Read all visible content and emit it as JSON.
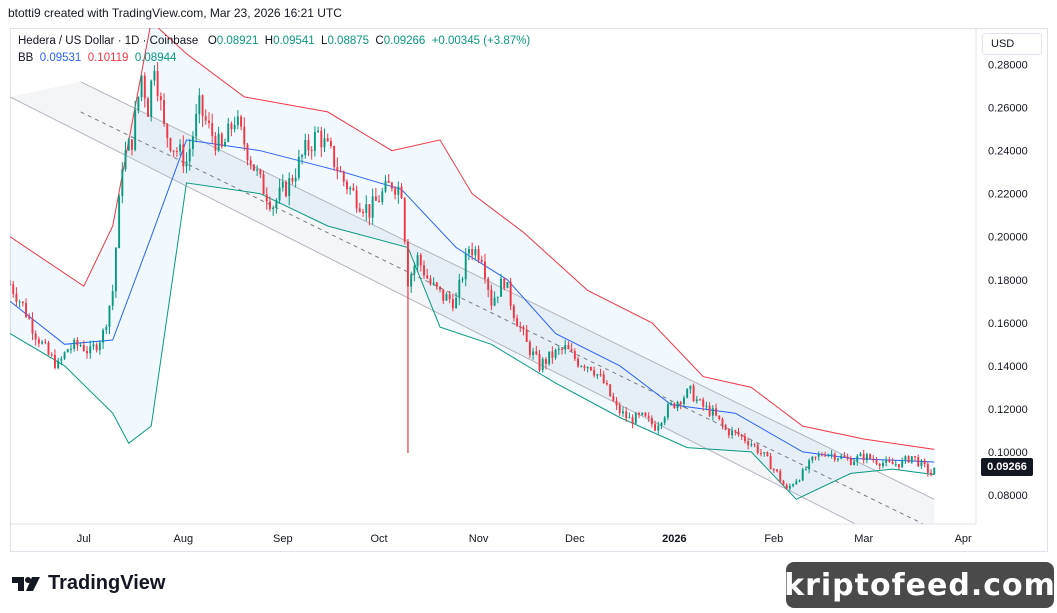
{
  "attribution": "btotti9 created with TradingView.com, Mar 23, 2026 16:21 UTC",
  "legend": {
    "symbol": "Hedera / US Dollar · 1D · Coinbase",
    "o_label": "O",
    "o_value": "0.08921",
    "h_label": "H",
    "h_value": "0.09541",
    "l_label": "L",
    "l_value": "0.08875",
    "c_label": "C",
    "c_value": "0.09266",
    "change": "+0.00345 (+3.87%)",
    "bb_label": "BB",
    "bb_basis": "0.09531",
    "bb_upper": "0.10119",
    "bb_lower": "0.08944"
  },
  "currency": "USD",
  "last_price": "0.09266",
  "brand": "TradingView",
  "watermark": "kriptofeed.com",
  "colors": {
    "up": "#089981",
    "down": "#f23645",
    "basis": "#2962ff",
    "upper": "#f23645",
    "lower": "#089981",
    "grid": "#e0e3eb",
    "channel": "#b2b5be"
  },
  "chart_data": {
    "type": "candlestick",
    "symbol": "Hedera / US Dollar",
    "interval": "1D",
    "exchange": "Coinbase",
    "ylim": [
      0.0665,
      0.297
    ],
    "yticks": [
      0.08,
      0.1,
      0.12,
      0.14,
      0.16,
      0.18,
      0.2,
      0.22,
      0.24,
      0.26,
      0.28
    ],
    "ytick_labels": [
      "0.08000",
      "0.10000",
      "0.12000",
      "0.14000",
      "0.16000",
      "0.18000",
      "0.20000",
      "0.22000",
      "0.24000",
      "0.26000",
      "0.28000"
    ],
    "xlim": [
      "2025-06-08",
      "2026-04-05"
    ],
    "xticks": [
      "2025-07-01",
      "2025-08-01",
      "2025-09-01",
      "2025-10-01",
      "2025-11-01",
      "2025-12-01",
      "2026-01-01",
      "2026-02-01",
      "2026-03-01",
      "2026-04-01"
    ],
    "xtick_labels": [
      "Jul",
      "Aug",
      "Sep",
      "Oct",
      "Nov",
      "Dec",
      "2026",
      "Feb",
      "Mar",
      "Apr"
    ],
    "price_path": [
      [
        "2025-06-08",
        0.178
      ],
      [
        "2025-06-12",
        0.168
      ],
      [
        "2025-06-16",
        0.155
      ],
      [
        "2025-06-20",
        0.145
      ],
      [
        "2025-06-23",
        0.14
      ],
      [
        "2025-06-26",
        0.148
      ],
      [
        "2025-06-30",
        0.15
      ],
      [
        "2025-07-03",
        0.146
      ],
      [
        "2025-07-07",
        0.155
      ],
      [
        "2025-07-10",
        0.175
      ],
      [
        "2025-07-13",
        0.235
      ],
      [
        "2025-07-16",
        0.245
      ],
      [
        "2025-07-19",
        0.275
      ],
      [
        "2025-07-21",
        0.26
      ],
      [
        "2025-07-23",
        0.282
      ],
      [
        "2025-07-26",
        0.25
      ],
      [
        "2025-07-29",
        0.242
      ],
      [
        "2025-08-02",
        0.235
      ],
      [
        "2025-08-06",
        0.26
      ],
      [
        "2025-08-09",
        0.25
      ],
      [
        "2025-08-13",
        0.24
      ],
      [
        "2025-08-17",
        0.255
      ],
      [
        "2025-08-21",
        0.24
      ],
      [
        "2025-08-25",
        0.225
      ],
      [
        "2025-08-29",
        0.215
      ],
      [
        "2025-09-03",
        0.225
      ],
      [
        "2025-09-08",
        0.24
      ],
      [
        "2025-09-12",
        0.248
      ],
      [
        "2025-09-16",
        0.238
      ],
      [
        "2025-09-20",
        0.226
      ],
      [
        "2025-09-24",
        0.218
      ],
      [
        "2025-09-28",
        0.212
      ],
      [
        "2025-10-01",
        0.218
      ],
      [
        "2025-10-05",
        0.225
      ],
      [
        "2025-10-08",
        0.222
      ],
      [
        "2025-10-10",
        0.18
      ],
      [
        "2025-10-13",
        0.19
      ],
      [
        "2025-10-17",
        0.178
      ],
      [
        "2025-10-21",
        0.172
      ],
      [
        "2025-10-25",
        0.17
      ],
      [
        "2025-10-29",
        0.195
      ],
      [
        "2025-11-02",
        0.192
      ],
      [
        "2025-11-05",
        0.17
      ],
      [
        "2025-11-09",
        0.18
      ],
      [
        "2025-11-12",
        0.165
      ],
      [
        "2025-11-16",
        0.15
      ],
      [
        "2025-11-20",
        0.14
      ],
      [
        "2025-11-24",
        0.145
      ],
      [
        "2025-11-28",
        0.148
      ],
      [
        "2025-12-02",
        0.142
      ],
      [
        "2025-12-06",
        0.14
      ],
      [
        "2025-12-10",
        0.132
      ],
      [
        "2025-12-14",
        0.12
      ],
      [
        "2025-12-18",
        0.115
      ],
      [
        "2025-12-22",
        0.116
      ],
      [
        "2025-12-26",
        0.112
      ],
      [
        "2025-12-30",
        0.12
      ],
      [
        "2026-01-03",
        0.125
      ],
      [
        "2026-01-06",
        0.128
      ],
      [
        "2026-01-09",
        0.122
      ],
      [
        "2026-01-13",
        0.118
      ],
      [
        "2026-01-17",
        0.11
      ],
      [
        "2026-01-21",
        0.108
      ],
      [
        "2026-01-25",
        0.104
      ],
      [
        "2026-01-29",
        0.098
      ],
      [
        "2026-02-02",
        0.09
      ],
      [
        "2026-02-05",
        0.082
      ],
      [
        "2026-02-07",
        0.086
      ],
      [
        "2026-02-10",
        0.09
      ],
      [
        "2026-02-13",
        0.096
      ],
      [
        "2026-02-17",
        0.1
      ],
      [
        "2026-02-21",
        0.098
      ],
      [
        "2026-02-25",
        0.096
      ],
      [
        "2026-03-01",
        0.098
      ],
      [
        "2026-03-05",
        0.096
      ],
      [
        "2026-03-09",
        0.094
      ],
      [
        "2026-03-13",
        0.095
      ],
      [
        "2026-03-16",
        0.098
      ],
      [
        "2026-03-19",
        0.094
      ],
      [
        "2026-03-22",
        0.09
      ],
      [
        "2026-03-23",
        0.09266
      ]
    ],
    "wick_spikes": [
      [
        "2025-10-10",
        0.0995,
        0.19
      ]
    ],
    "bollinger": {
      "basis": [
        [
          "2025-06-08",
          0.17
        ],
        [
          "2025-06-25",
          0.15
        ],
        [
          "2025-07-10",
          0.152
        ],
        [
          "2025-07-22",
          0.2
        ],
        [
          "2025-08-02",
          0.245
        ],
        [
          "2025-08-25",
          0.24
        ],
        [
          "2025-09-20",
          0.23
        ],
        [
          "2025-10-08",
          0.222
        ],
        [
          "2025-10-25",
          0.195
        ],
        [
          "2025-11-10",
          0.18
        ],
        [
          "2025-11-25",
          0.155
        ],
        [
          "2025-12-15",
          0.14
        ],
        [
          "2025-12-31",
          0.122
        ],
        [
          "2026-01-20",
          0.118
        ],
        [
          "2026-02-10",
          0.1
        ],
        [
          "2026-02-25",
          0.097
        ],
        [
          "2026-03-23",
          0.09531
        ]
      ],
      "upper": [
        [
          "2025-06-08",
          0.2
        ],
        [
          "2025-07-01",
          0.177
        ],
        [
          "2025-07-10",
          0.205
        ],
        [
          "2025-07-22",
          0.3
        ],
        [
          "2025-08-02",
          0.285
        ],
        [
          "2025-08-20",
          0.265
        ],
        [
          "2025-09-15",
          0.258
        ],
        [
          "2025-10-05",
          0.24
        ],
        [
          "2025-10-20",
          0.245
        ],
        [
          "2025-10-30",
          0.22
        ],
        [
          "2025-11-15",
          0.202
        ],
        [
          "2025-12-05",
          0.175
        ],
        [
          "2025-12-25",
          0.16
        ],
        [
          "2026-01-10",
          0.135
        ],
        [
          "2026-01-25",
          0.13
        ],
        [
          "2026-02-10",
          0.112
        ],
        [
          "2026-03-01",
          0.106
        ],
        [
          "2026-03-23",
          0.10119
        ]
      ],
      "lower": [
        [
          "2025-06-08",
          0.155
        ],
        [
          "2025-06-25",
          0.14
        ],
        [
          "2025-07-10",
          0.118
        ],
        [
          "2025-07-15",
          0.104
        ],
        [
          "2025-07-22",
          0.112
        ],
        [
          "2025-08-02",
          0.225
        ],
        [
          "2025-08-25",
          0.22
        ],
        [
          "2025-09-15",
          0.205
        ],
        [
          "2025-10-10",
          0.195
        ],
        [
          "2025-10-20",
          0.158
        ],
        [
          "2025-11-05",
          0.15
        ],
        [
          "2025-11-25",
          0.132
        ],
        [
          "2025-12-15",
          0.116
        ],
        [
          "2026-01-05",
          0.102
        ],
        [
          "2026-01-25",
          0.1
        ],
        [
          "2026-02-08",
          0.078
        ],
        [
          "2026-02-25",
          0.09
        ],
        [
          "2026-03-10",
          0.092
        ],
        [
          "2026-03-23",
          0.08944
        ]
      ]
    },
    "channel": {
      "upper": [
        [
          "2025-06-30",
          0.272
        ],
        [
          "2026-03-23",
          0.078
        ]
      ],
      "middle": [
        [
          "2025-06-30",
          0.258
        ],
        [
          "2026-03-23",
          0.064
        ]
      ],
      "lower": [
        [
          "2025-06-08",
          0.265
        ],
        [
          "2026-03-23",
          0.048
        ]
      ]
    },
    "grid": false,
    "legend_position": "top-left"
  }
}
